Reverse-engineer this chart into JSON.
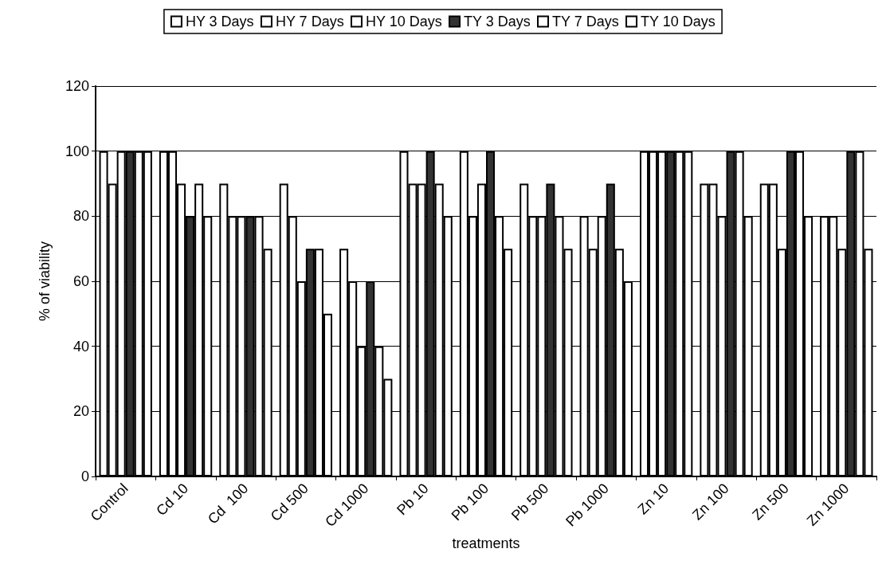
{
  "chart_data": {
    "type": "bar",
    "xlabel": "treatments",
    "ylabel": "% of viability",
    "categories": [
      "Control",
      "Cd 10",
      "Cd  100",
      "Cd 500",
      "Cd 1000",
      "Pb 10",
      "Pb 100",
      "Pb 500",
      "Pb 1000",
      "Zn 10",
      "Zn 100",
      "Zn 500",
      "Zn 1000"
    ],
    "series": [
      {
        "name": "HY 3 Days",
        "color": "#ffffff",
        "values": [
          100,
          100,
          90,
          90,
          70,
          100,
          100,
          90,
          80,
          100,
          90,
          90,
          80
        ]
      },
      {
        "name": "HY 7 Days",
        "color": "#ffffff",
        "values": [
          90,
          100,
          80,
          80,
          60,
          90,
          80,
          80,
          70,
          100,
          90,
          90,
          80
        ]
      },
      {
        "name": "HY 10 Days",
        "color": "#ffffff",
        "values": [
          100,
          90,
          80,
          60,
          40,
          90,
          90,
          80,
          80,
          100,
          80,
          70,
          70
        ]
      },
      {
        "name": "TY 3 Days",
        "color": "#333333",
        "values": [
          100,
          80,
          80,
          70,
          60,
          100,
          100,
          90,
          90,
          100,
          100,
          100,
          100
        ]
      },
      {
        "name": "TY 7 Days",
        "color": "#ffffff",
        "values": [
          100,
          90,
          80,
          70,
          40,
          90,
          80,
          80,
          70,
          100,
          100,
          100,
          100
        ]
      },
      {
        "name": "TY 10 Days",
        "color": "#ffffff",
        "values": [
          100,
          80,
          70,
          50,
          30,
          80,
          70,
          70,
          60,
          100,
          80,
          80,
          70
        ]
      }
    ],
    "ylim": [
      0,
      120
    ],
    "yticks": [
      0,
      20,
      40,
      60,
      80,
      100,
      120
    ],
    "grid": "y",
    "legend": "top"
  }
}
